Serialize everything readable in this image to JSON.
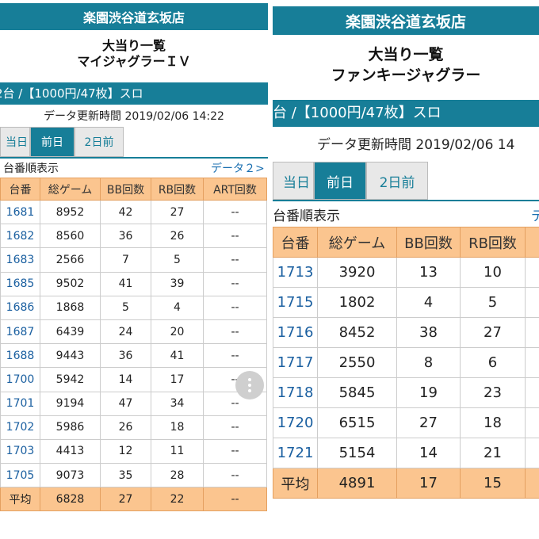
{
  "left": {
    "shop_name": "楽園渋谷道玄坂店",
    "title_line1": "大当り一覧",
    "title_line2": "マイジャグラーＩＶ",
    "mode_text": "2台 /【1000円/47枚】スロ",
    "update_text": "データ更新時間 2019/02/06 14:22",
    "tabs": [
      "当日",
      "前日",
      "2日前"
    ],
    "active_tab": "前日",
    "sort_label": "台番順表示",
    "next_link": "データ２>",
    "headers": [
      "台番",
      "総ゲーム",
      "BB回数",
      "RB回数",
      "ART回数"
    ],
    "rows": [
      {
        "id": "1681",
        "games": "8952",
        "bb": "42",
        "rb": "27",
        "art": "--"
      },
      {
        "id": "1682",
        "games": "8560",
        "bb": "36",
        "rb": "26",
        "art": "--"
      },
      {
        "id": "1683",
        "games": "2566",
        "bb": "7",
        "rb": "5",
        "art": "--"
      },
      {
        "id": "1685",
        "games": "9502",
        "bb": "41",
        "rb": "39",
        "art": "--"
      },
      {
        "id": "1686",
        "games": "1868",
        "bb": "5",
        "rb": "4",
        "art": "--"
      },
      {
        "id": "1687",
        "games": "6439",
        "bb": "24",
        "rb": "20",
        "art": "--"
      },
      {
        "id": "1688",
        "games": "9443",
        "bb": "36",
        "rb": "41",
        "art": "--"
      },
      {
        "id": "1700",
        "games": "5942",
        "bb": "14",
        "rb": "17",
        "art": "--"
      },
      {
        "id": "1701",
        "games": "9194",
        "bb": "47",
        "rb": "34",
        "art": "--"
      },
      {
        "id": "1702",
        "games": "5986",
        "bb": "26",
        "rb": "18",
        "art": "--"
      },
      {
        "id": "1703",
        "games": "4413",
        "bb": "12",
        "rb": "11",
        "art": "--"
      },
      {
        "id": "1705",
        "games": "9073",
        "bb": "35",
        "rb": "28",
        "art": "--"
      }
    ],
    "avg": {
      "label": "平均",
      "games": "6828",
      "bb": "27",
      "rb": "22",
      "art": "--"
    }
  },
  "right": {
    "shop_name": "楽園渋谷道玄坂店",
    "title_line1": "大当り一覧",
    "title_line2": "ファンキージャグラー",
    "mode_text": "台 /【1000円/47枚】スロ",
    "update_text": "データ更新時間 2019/02/06 14",
    "tabs": [
      "当日",
      "前日",
      "2日前"
    ],
    "active_tab": "前日",
    "sort_label": "台番順表示",
    "next_link": "デ",
    "headers": [
      "台番",
      "総ゲーム",
      "BB回数",
      "RB回数"
    ],
    "rows": [
      {
        "id": "1713",
        "games": "3920",
        "bb": "13",
        "rb": "10"
      },
      {
        "id": "1715",
        "games": "1802",
        "bb": "4",
        "rb": "5"
      },
      {
        "id": "1716",
        "games": "8452",
        "bb": "38",
        "rb": "27"
      },
      {
        "id": "1717",
        "games": "2550",
        "bb": "8",
        "rb": "6"
      },
      {
        "id": "1718",
        "games": "5845",
        "bb": "19",
        "rb": "23"
      },
      {
        "id": "1720",
        "games": "6515",
        "bb": "27",
        "rb": "18"
      },
      {
        "id": "1721",
        "games": "5154",
        "bb": "14",
        "rb": "21"
      }
    ],
    "avg": {
      "label": "平均",
      "games": "4891",
      "bb": "17",
      "rb": "15"
    }
  },
  "colors": {
    "header_teal": "#177e98",
    "table_header": "#fbc58f",
    "link_blue": "#1a5fa0"
  },
  "fab_icon": "more-vertical-icon"
}
